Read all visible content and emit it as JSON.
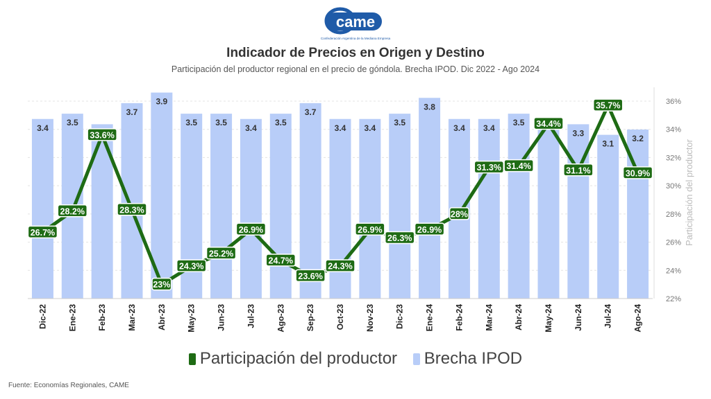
{
  "logo": {
    "name": "came",
    "tagline": "Confederación Argentina de la Mediana Empresa"
  },
  "chart_data": {
    "type": "bar",
    "title": "Indicador de Precios en Origen y Destino",
    "subtitle": "Participación del productor regional en el precio de góndola. Brecha IPOD. Dic 2022 - Ago 2024",
    "categories": [
      "Dic-22",
      "Ene-23",
      "Feb-23",
      "Mar-23",
      "Abr-23",
      "May-23",
      "Jun-23",
      "Jul-23",
      "Ago-23",
      "Sep-23",
      "Oct-23",
      "Nov-23",
      "Dic-23",
      "Ene-24",
      "Feb-24",
      "Mar-24",
      "Abr-24",
      "May-24",
      "Jun-24",
      "Jul-24",
      "Ago-24"
    ],
    "series": [
      {
        "name": "Brecha IPOD",
        "kind": "bar",
        "color": "#b8cdf8",
        "values": [
          3.4,
          3.5,
          3.3,
          3.7,
          3.9,
          3.5,
          3.5,
          3.4,
          3.5,
          3.7,
          3.4,
          3.4,
          3.5,
          3.8,
          3.4,
          3.4,
          3.5,
          3.3,
          3.3,
          3.1,
          3.2
        ],
        "labels": [
          "3.4",
          "3.5",
          "",
          "3.7",
          "3.9",
          "3.5",
          "3.5",
          "3.4",
          "3.5",
          "3.7",
          "3.4",
          "3.4",
          "3.5",
          "3.8",
          "3.4",
          "3.4",
          "3.5",
          "",
          "3.3",
          "3.1",
          "3.2"
        ]
      },
      {
        "name": "Participación del productor",
        "kind": "line",
        "color": "#1e6b14",
        "values": [
          26.7,
          28.2,
          33.6,
          28.3,
          23,
          24.3,
          25.2,
          26.9,
          24.7,
          23.6,
          24.3,
          26.9,
          26.3,
          26.9,
          28,
          31.3,
          31.4,
          34.4,
          31.1,
          35.7,
          30.9
        ],
        "labels": [
          "26.7%",
          "28.2%",
          "33.6%",
          "28.3%",
          "23%",
          "24.3%",
          "25.2%",
          "26.9%",
          "24.7%",
          "23.6%",
          "24.3%",
          "26.9%",
          "26.3%",
          "26.9%",
          "28%",
          "31.3%",
          "31.4%",
          "34.4%",
          "31.1%",
          "35.7%",
          "30.9%"
        ]
      }
    ],
    "y_right": {
      "label": "Participación del productor",
      "min": 22,
      "max": 36,
      "ticks": [
        "22%",
        "24%",
        "26%",
        "28%",
        "30%",
        "32%",
        "34%",
        "36%"
      ]
    },
    "y_bar": {
      "min": 0,
      "max": 4.0
    },
    "grid": true,
    "legend_position": "bottom"
  },
  "source": "Fuente: Economías Regionales, CAME"
}
